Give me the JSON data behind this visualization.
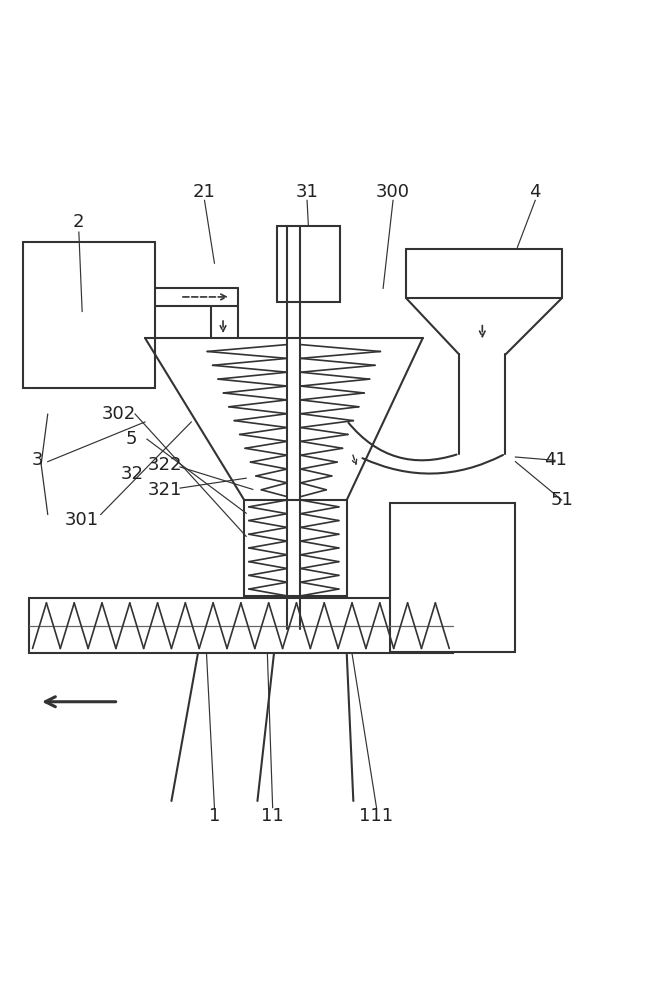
{
  "bg_color": "#ffffff",
  "line_color": "#333333",
  "line_width": 1.5
}
